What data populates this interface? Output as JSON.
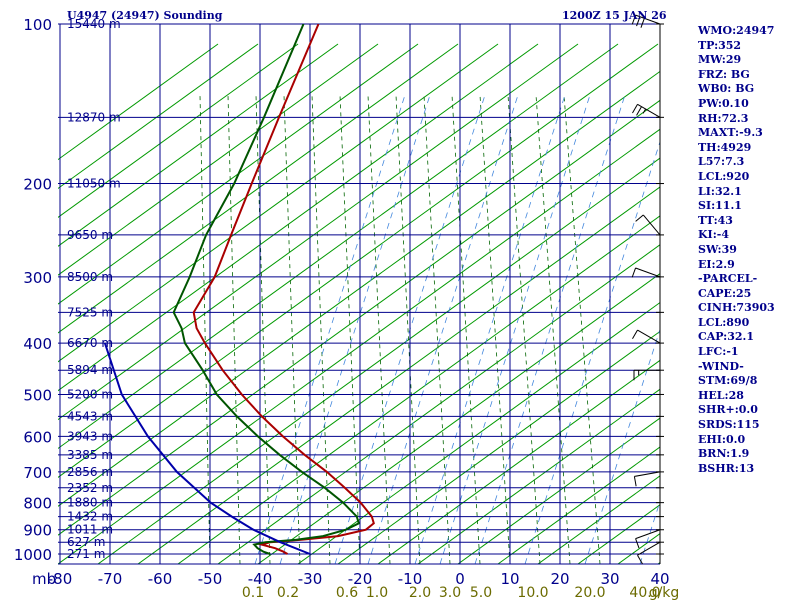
{
  "chart_data": {
    "type": "skew-t sounding",
    "title": "U4947 (24947) Sounding",
    "time": "1200Z 15 JAN 26",
    "pressure_axis": {
      "unit_label": "mb",
      "ticks": [
        100,
        200,
        300,
        400,
        500,
        600,
        700,
        800,
        900,
        1000
      ],
      "range": [
        1050,
        100
      ]
    },
    "temperature_axis": {
      "ticks": [
        -80,
        -70,
        -60,
        -50,
        -40,
        -30,
        -20,
        -10,
        0,
        10,
        20,
        30,
        40
      ],
      "range": [
        -80,
        40
      ]
    },
    "mixing_ratio_labels": [
      "0.1",
      "0.2",
      "0.6",
      "1.0",
      "2.0",
      "3.0",
      "5.0",
      "10.0",
      "20.0",
      "40.0"
    ],
    "mixing_ratio_unit": "g/kg",
    "height_labels": [
      {
        "p": 100,
        "label": "15440 m"
      },
      {
        "p": 150,
        "label": "12870 m"
      },
      {
        "p": 200,
        "label": "11050 m"
      },
      {
        "p": 250,
        "label": "9650 m"
      },
      {
        "p": 300,
        "label": "8500 m"
      },
      {
        "p": 350,
        "label": "7525 m"
      },
      {
        "p": 400,
        "label": "6670 m"
      },
      {
        "p": 450,
        "label": "5894 m"
      },
      {
        "p": 500,
        "label": "5200 m"
      },
      {
        "p": 550,
        "label": "4543 m"
      },
      {
        "p": 600,
        "label": "3943 m"
      },
      {
        "p": 650,
        "label": "3385 m"
      },
      {
        "p": 700,
        "label": "2856 m"
      },
      {
        "p": 750,
        "label": "2352 m"
      },
      {
        "p": 800,
        "label": "1880 m"
      },
      {
        "p": 850,
        "label": "1432 m"
      },
      {
        "p": 900,
        "label": "1011 m"
      },
      {
        "p": 950,
        "label": "627 m"
      },
      {
        "p": 1000,
        "label": "271 m"
      }
    ],
    "series": [
      {
        "name": "temperature",
        "color": "#aa0000",
        "points": [
          [
            1000,
            -34.5
          ],
          [
            990,
            -35.5
          ],
          [
            975,
            -37.5
          ],
          [
            960,
            -40.5
          ],
          [
            950,
            -39
          ],
          [
            940,
            -33
          ],
          [
            925,
            -26
          ],
          [
            900,
            -21
          ],
          [
            875,
            -20
          ],
          [
            850,
            -21
          ],
          [
            800,
            -24.5
          ],
          [
            750,
            -29
          ],
          [
            700,
            -34
          ],
          [
            650,
            -40
          ],
          [
            600,
            -46
          ],
          [
            550,
            -52
          ],
          [
            500,
            -58
          ],
          [
            450,
            -64
          ],
          [
            400,
            -70
          ],
          [
            375,
            -73
          ],
          [
            350,
            -75
          ],
          [
            300,
            -74
          ],
          [
            250,
            -74.5
          ],
          [
            200,
            -75
          ],
          [
            150,
            -75.5
          ],
          [
            100,
            -76
          ]
        ]
      },
      {
        "name": "dewpoint",
        "color": "#005500",
        "points": [
          [
            1000,
            -38
          ],
          [
            990,
            -39.5
          ],
          [
            975,
            -41
          ],
          [
            960,
            -42
          ],
          [
            950,
            -40
          ],
          [
            940,
            -34
          ],
          [
            925,
            -29
          ],
          [
            900,
            -25
          ],
          [
            875,
            -23
          ],
          [
            850,
            -24
          ],
          [
            800,
            -28
          ],
          [
            750,
            -33
          ],
          [
            700,
            -39
          ],
          [
            650,
            -45
          ],
          [
            600,
            -51
          ],
          [
            550,
            -57
          ],
          [
            500,
            -63
          ],
          [
            450,
            -68
          ],
          [
            400,
            -74
          ],
          [
            375,
            -76
          ],
          [
            350,
            -79
          ],
          [
            300,
            -79
          ],
          [
            250,
            -79.5
          ],
          [
            200,
            -78.5
          ],
          [
            150,
            -78.5
          ],
          [
            100,
            -79
          ]
        ]
      },
      {
        "name": "parcel",
        "color": "#0000aa",
        "points": [
          [
            1000,
            -30
          ],
          [
            950,
            -37
          ],
          [
            900,
            -43.5
          ],
          [
            850,
            -49
          ],
          [
            800,
            -54.5
          ],
          [
            700,
            -64
          ],
          [
            600,
            -73
          ],
          [
            500,
            -82
          ],
          [
            400,
            -90
          ]
        ]
      }
    ],
    "wind_barbs": [
      {
        "p": 100,
        "dir": 290,
        "speed": 30
      },
      {
        "p": 150,
        "dir": 300,
        "speed": 15
      },
      {
        "p": 250,
        "dir": 320,
        "speed": 10
      },
      {
        "p": 300,
        "dir": 290,
        "speed": 10
      },
      {
        "p": 400,
        "dir": 300,
        "speed": 10
      },
      {
        "p": 450,
        "dir": 270,
        "speed": 5
      },
      {
        "p": 700,
        "dir": 260,
        "speed": 10
      },
      {
        "p": 900,
        "dir": 250,
        "speed": 10
      },
      {
        "p": 950,
        "dir": 240,
        "speed": 10
      }
    ]
  },
  "indices": [
    "WMO:24947",
    "TP:352",
    "MW:29",
    "FRZ: BG",
    "WB0: BG",
    "PW:0.10",
    "RH:72.3",
    "MAXT:-9.3",
    "TH:4929",
    "L57:7.3",
    "LCL:920",
    "LI:32.1",
    "SI:11.1",
    "TT:43",
    "KI:-4",
    "SW:39",
    "EI:2.9",
    "-PARCEL-",
    "CAPE:25",
    "CINH:73903",
    "LCL:890",
    "CAP:32.1",
    "LFC:-1",
    "-WIND-",
    "STM:69/8",
    "HEL:28",
    "SHR+:0.0",
    "SRDS:115",
    "EHI:0.0",
    "BRN:1.9",
    "BSHR:13"
  ],
  "colors": {
    "grid": "#00008b",
    "dry_adiabat": "#009900",
    "moist_adiabat": "#006400",
    "mixing_ratio": "#4488dd",
    "axis_text": "#00008b",
    "mixing_text": "#6b6b00"
  }
}
